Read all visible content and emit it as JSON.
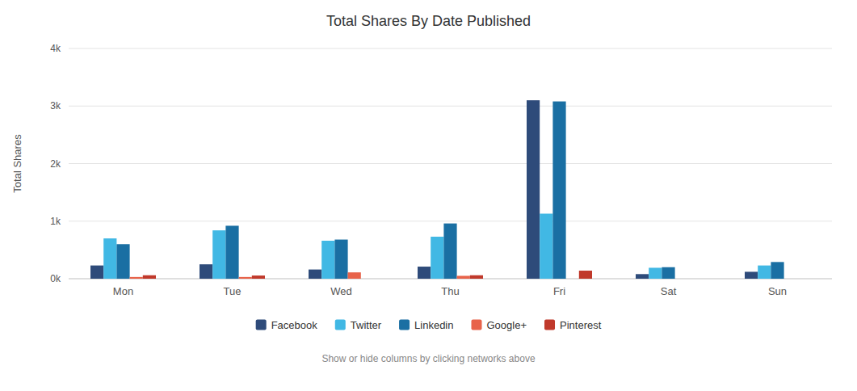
{
  "chart_data": {
    "type": "bar",
    "title": "Total Shares By Date Published",
    "subtitle": "Show or hide columns by clicking networks above",
    "ylabel": "Total Shares",
    "categories": [
      "Mon",
      "Tue",
      "Wed",
      "Thu",
      "Fri",
      "Sat",
      "Sun"
    ],
    "series": [
      {
        "name": "Facebook",
        "color": "#2e4b7a",
        "values": [
          230,
          250,
          160,
          210,
          3100,
          80,
          120
        ]
      },
      {
        "name": "Twitter",
        "color": "#41b8e4",
        "values": [
          700,
          840,
          660,
          730,
          1130,
          190,
          230
        ]
      },
      {
        "name": "Linkedin",
        "color": "#1a6fa3",
        "values": [
          600,
          920,
          680,
          960,
          3080,
          200,
          290
        ]
      },
      {
        "name": "Google+",
        "color": "#e8634a",
        "values": [
          30,
          30,
          110,
          50,
          0,
          0,
          0
        ]
      },
      {
        "name": "Pinterest",
        "color": "#c0392b",
        "values": [
          60,
          55,
          0,
          60,
          140,
          0,
          0
        ]
      }
    ],
    "ylim": [
      0,
      4000
    ],
    "yticks": [
      {
        "value": 0,
        "label": "0k"
      },
      {
        "value": 1000,
        "label": "1k"
      },
      {
        "value": 2000,
        "label": "2k"
      },
      {
        "value": 3000,
        "label": "3k"
      },
      {
        "value": 4000,
        "label": "4k"
      }
    ],
    "grid": true,
    "legend": "bottom"
  }
}
